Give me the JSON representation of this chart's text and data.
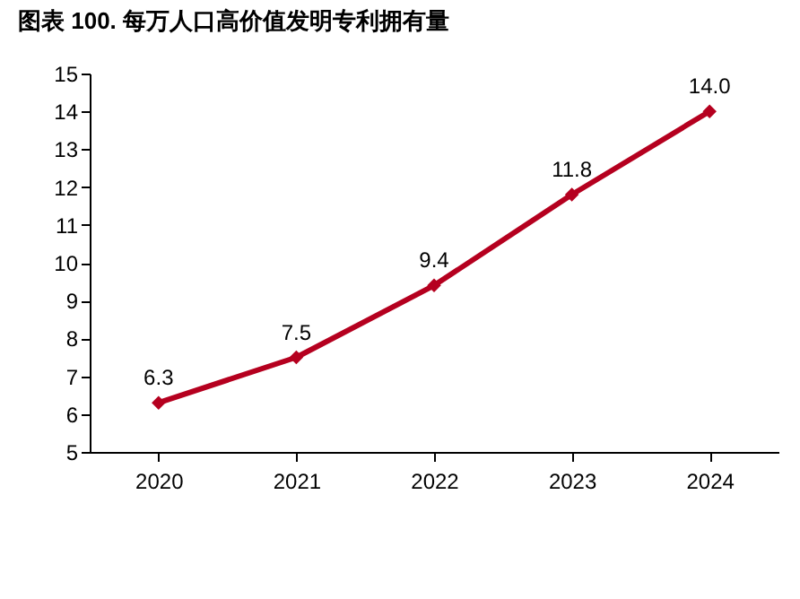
{
  "chart_data": {
    "type": "line",
    "title": "图表 100. 每万人口高价值发明专利拥有量",
    "categories": [
      "2020",
      "2021",
      "2022",
      "2023",
      "2024"
    ],
    "series": [
      {
        "color": "#b5001f",
        "values": [
          6.3,
          7.5,
          9.4,
          11.8,
          14.0
        ],
        "value_labels": [
          "6.3",
          "7.5",
          "9.4",
          "11.8",
          "14.0"
        ]
      }
    ],
    "ylim": [
      5,
      15
    ],
    "yticks": [
      5,
      6,
      7,
      8,
      9,
      10,
      11,
      12,
      13,
      14,
      15
    ],
    "grid": false,
    "legend": false,
    "marker": "diamond",
    "line_style": "solid"
  }
}
